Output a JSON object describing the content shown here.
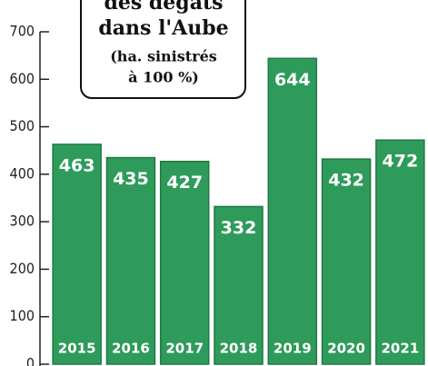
{
  "chart_data": {
    "type": "bar",
    "title_lines": [
      "des dégâts",
      "dans l'Aube",
      "(ha. sinistrés",
      "à 100 %)"
    ],
    "categories": [
      "2015",
      "2016",
      "2017",
      "2018",
      "2019",
      "2020",
      "2021"
    ],
    "values": [
      463,
      435,
      427,
      332,
      644,
      432,
      472
    ],
    "color": "#2e9b5a",
    "ylim": [
      0,
      700
    ],
    "yticks": [
      0,
      100,
      200,
      300,
      400,
      500,
      600,
      700
    ]
  }
}
